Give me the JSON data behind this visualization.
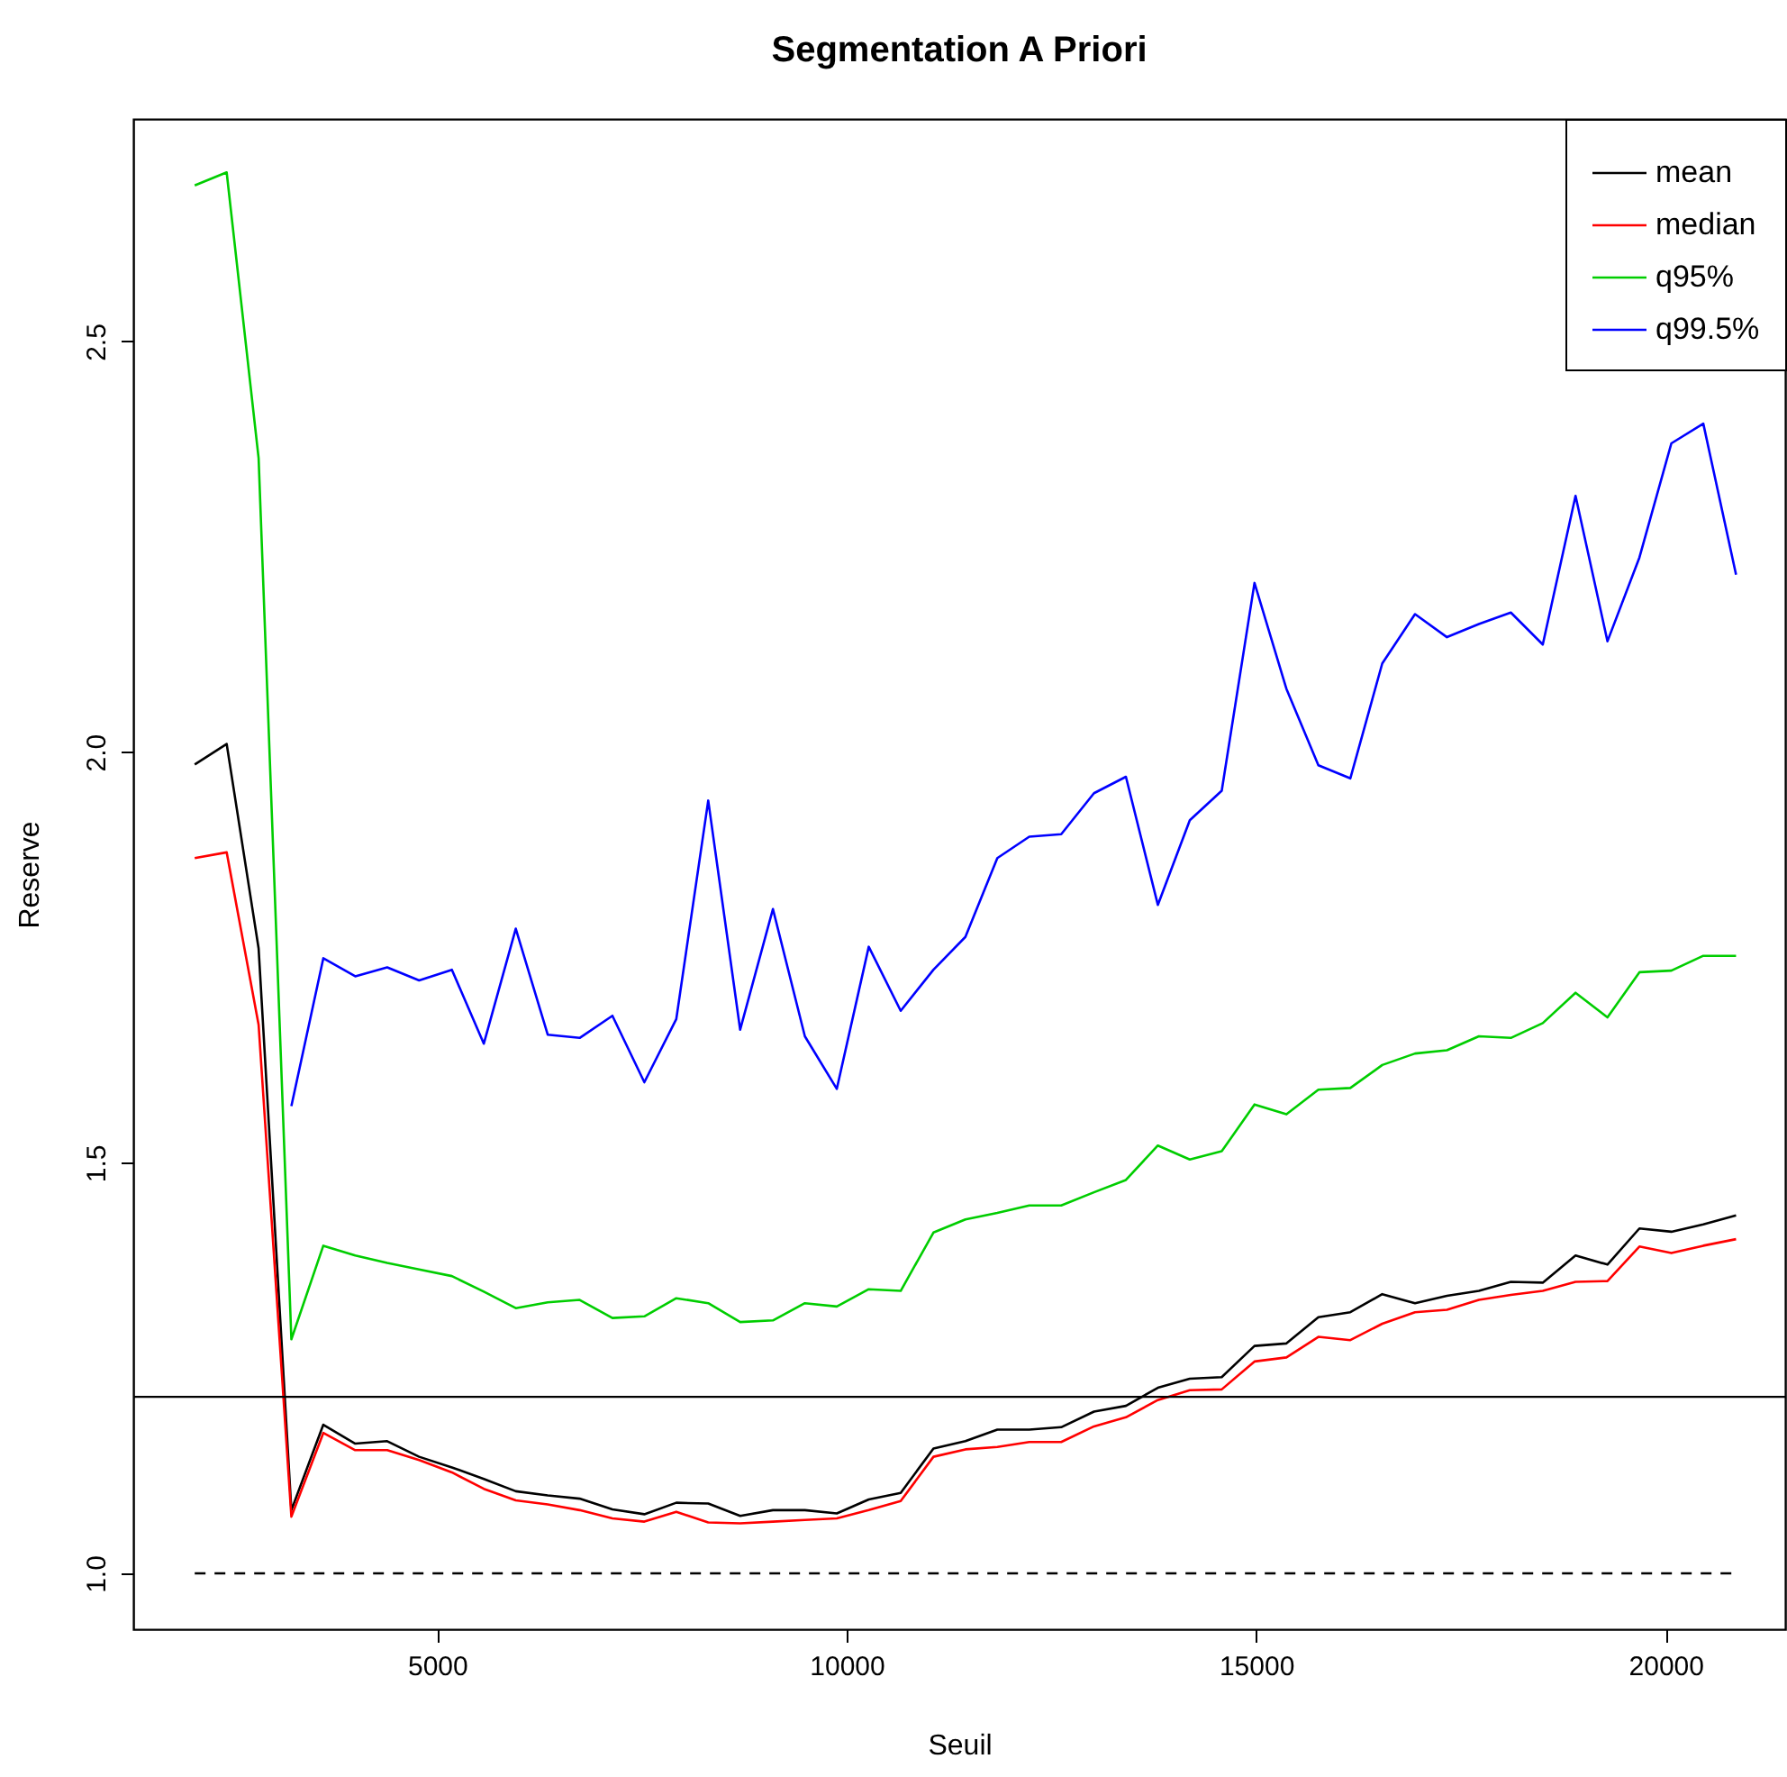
{
  "chart_data": {
    "type": "line",
    "title": "Segmentation A Priori",
    "xlabel": "Seuil",
    "ylabel": "Reserve",
    "x": [
      2040,
      2430,
      2820,
      3220,
      3610,
      4000,
      4390,
      4780,
      5180,
      5570,
      5960,
      6350,
      6740,
      7140,
      7530,
      7920,
      8310,
      8700,
      9100,
      9490,
      9880,
      10270,
      10660,
      11060,
      11450,
      11840,
      12230,
      12620,
      13020,
      13410,
      13800,
      14190,
      14580,
      14980,
      15370,
      15760,
      16150,
      16540,
      16940,
      17330,
      17720,
      18110,
      18500,
      18900,
      19290,
      19680,
      20070,
      20460,
      20860
    ],
    "series": [
      {
        "name": "mean",
        "color": "#000000",
        "values": [
          1.985,
          2.01,
          1.761,
          1.077,
          1.181,
          1.158,
          1.161,
          1.142,
          1.129,
          1.115,
          1.1,
          1.095,
          1.091,
          1.078,
          1.072,
          1.086,
          1.085,
          1.07,
          1.077,
          1.077,
          1.073,
          1.09,
          1.098,
          1.152,
          1.161,
          1.175,
          1.175,
          1.178,
          1.197,
          1.204,
          1.226,
          1.237,
          1.239,
          1.277,
          1.28,
          1.312,
          1.318,
          1.34,
          1.329,
          1.338,
          1.344,
          1.355,
          1.354,
          1.387,
          1.376,
          1.42,
          1.416,
          1.425,
          1.436
        ]
      },
      {
        "name": "median",
        "color": "#ff0000",
        "values": [
          1.871,
          1.878,
          1.668,
          1.069,
          1.171,
          1.15,
          1.15,
          1.138,
          1.123,
          1.103,
          1.089,
          1.084,
          1.077,
          1.067,
          1.063,
          1.075,
          1.062,
          1.061,
          1.063,
          1.065,
          1.067,
          1.077,
          1.088,
          1.142,
          1.151,
          1.154,
          1.16,
          1.16,
          1.179,
          1.19,
          1.211,
          1.223,
          1.224,
          1.258,
          1.263,
          1.288,
          1.284,
          1.304,
          1.318,
          1.321,
          1.333,
          1.339,
          1.344,
          1.355,
          1.356,
          1.398,
          1.39,
          1.399,
          1.407
        ]
      },
      {
        "name": "q95%",
        "color": "#00cd00",
        "values": [
          2.69,
          2.706,
          2.358,
          1.285,
          1.399,
          1.387,
          1.378,
          1.37,
          1.362,
          1.343,
          1.323,
          1.33,
          1.333,
          1.311,
          1.313,
          1.335,
          1.329,
          1.306,
          1.308,
          1.329,
          1.325,
          1.346,
          1.344,
          1.415,
          1.431,
          1.439,
          1.448,
          1.448,
          1.464,
          1.479,
          1.521,
          1.504,
          1.514,
          1.571,
          1.559,
          1.589,
          1.591,
          1.619,
          1.633,
          1.637,
          1.654,
          1.652,
          1.67,
          1.707,
          1.677,
          1.732,
          1.734,
          1.752,
          1.752
        ]
      },
      {
        "name": "q99.5%",
        "color": "#0000ff",
        "values": [
          null,
          null,
          null,
          1.569,
          1.749,
          1.727,
          1.738,
          1.722,
          1.735,
          1.645,
          1.785,
          1.656,
          1.652,
          1.679,
          1.598,
          1.675,
          1.941,
          1.662,
          1.809,
          1.654,
          1.59,
          1.763,
          1.685,
          1.735,
          1.775,
          1.871,
          1.897,
          1.9,
          1.95,
          1.97,
          1.814,
          1.917,
          1.953,
          2.206,
          2.077,
          1.984,
          1.968,
          2.108,
          2.168,
          2.14,
          2.156,
          2.17,
          2.131,
          2.312,
          2.135,
          2.237,
          2.376,
          2.4,
          2.216
        ]
      },
      {
        "color": "#000000",
        "line_style": "dashed",
        "x": [
          2040,
          20860
        ],
        "values": [
          1.0,
          1.0
        ]
      }
    ],
    "ref_lines": [
      {
        "axis": "y",
        "value": 1.215,
        "color": "#000000"
      }
    ],
    "xlim": [
      1290,
      21460
    ],
    "ylim": [
      0.932,
      2.771
    ],
    "xticks": [
      5000,
      10000,
      15000,
      20000
    ],
    "yticks": [
      {
        "value": 1,
        "label": "1.0"
      },
      1.5,
      {
        "value": 2,
        "label": "2.0"
      },
      2.5
    ],
    "grid": false,
    "legend": "top right",
    "marker": "none",
    "line_style": "solid"
  }
}
